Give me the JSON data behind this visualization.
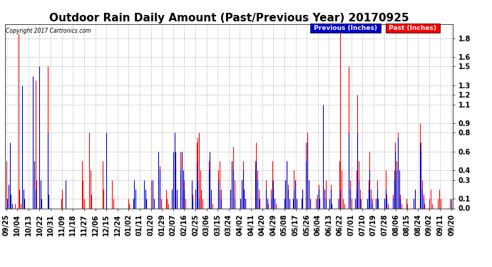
{
  "title": "Outdoor Rain Daily Amount (Past/Previous Year) 20170925",
  "copyright_text": "Copyright 2017 Cartronics.com",
  "legend_previous": "Previous (Inches)",
  "legend_past": "Past (Inches)",
  "yticks": [
    0.0,
    0.1,
    0.3,
    0.4,
    0.6,
    0.8,
    0.9,
    1.1,
    1.2,
    1.3,
    1.5,
    1.6,
    1.8
  ],
  "ylim": [
    0.0,
    1.95
  ],
  "x_labels": [
    "09/25",
    "10/04",
    "10/13",
    "10/22",
    "10/31",
    "11/09",
    "11/18",
    "11/27",
    "12/06",
    "12/15",
    "12/24",
    "01/02",
    "01/11",
    "01/20",
    "01/29",
    "02/07",
    "02/16",
    "02/25",
    "03/06",
    "03/15",
    "03/24",
    "04/02",
    "04/11",
    "04/20",
    "04/29",
    "05/08",
    "05/17",
    "05/26",
    "06/04",
    "06/13",
    "06/22",
    "07/01",
    "07/10",
    "07/19",
    "07/28",
    "08/06",
    "08/15",
    "08/24",
    "09/02",
    "09/11",
    "09/20"
  ],
  "background_color": "#ffffff",
  "grid_color": "#bbbbbb",
  "previous_color": "#0000cc",
  "past_color": "#ff0000",
  "dark_color": "#333333",
  "title_fontsize": 11,
  "axis_fontsize": 7,
  "n_points": 366,
  "seed": 42,
  "past_data": [
    0.5,
    0.1,
    0.0,
    0.0,
    0.0,
    0.0,
    0.0,
    0.05,
    0.0,
    0.0,
    1.85,
    0.2,
    0.05,
    0.0,
    0.0,
    0.0,
    0.0,
    0.0,
    0.0,
    0.0,
    0.0,
    0.0,
    0.0,
    0.0,
    1.35,
    0.3,
    0.0,
    0.0,
    0.0,
    0.0,
    0.0,
    0.0,
    0.0,
    0.0,
    1.5,
    0.05,
    0.0,
    0.0,
    0.0,
    0.0,
    0.0,
    0.0,
    0.0,
    0.0,
    0.0,
    0.1,
    0.2,
    0.0,
    0.0,
    0.0,
    0.0,
    0.0,
    0.0,
    0.0,
    0.0,
    0.0,
    0.0,
    0.0,
    0.0,
    0.0,
    0.0,
    0.0,
    0.5,
    0.3,
    0.1,
    0.0,
    0.0,
    0.0,
    0.8,
    0.4,
    0.15,
    0.0,
    0.0,
    0.0,
    0.0,
    0.0,
    0.0,
    0.0,
    0.0,
    0.5,
    0.2,
    0.0,
    0.0,
    0.0,
    0.0,
    0.0,
    0.0,
    0.3,
    0.1,
    0.0,
    0.0,
    0.0,
    0.0,
    0.0,
    0.0,
    0.0,
    0.0,
    0.0,
    0.0,
    0.0,
    0.1,
    0.05,
    0.0,
    0.0,
    0.0,
    0.0,
    0.0,
    0.0,
    0.0,
    0.0,
    0.0,
    0.0,
    0.0,
    0.0,
    0.0,
    0.0,
    0.0,
    0.0,
    0.0,
    0.3,
    0.15,
    0.0,
    0.0,
    0.0,
    0.0,
    0.3,
    0.45,
    0.1,
    0.0,
    0.0,
    0.0,
    0.2,
    0.1,
    0.05,
    0.0,
    0.0,
    0.2,
    0.4,
    0.6,
    0.3,
    0.1,
    0.0,
    0.0,
    0.6,
    0.55,
    0.2,
    0.3,
    0.1,
    0.0,
    0.0,
    0.0,
    0.0,
    0.25,
    0.15,
    0.0,
    0.0,
    0.7,
    0.75,
    0.8,
    0.4,
    0.2,
    0.1,
    0.0,
    0.0,
    0.0,
    0.0,
    0.5,
    0.4,
    0.1,
    0.05,
    0.0,
    0.0,
    0.0,
    0.0,
    0.4,
    0.5,
    0.2,
    0.0,
    0.0,
    0.0,
    0.0,
    0.0,
    0.0,
    0.0,
    0.2,
    0.5,
    0.65,
    0.3,
    0.0,
    0.0,
    0.0,
    0.0,
    0.1,
    0.3,
    0.5,
    0.2,
    0.1,
    0.0,
    0.0,
    0.0,
    0.0,
    0.0,
    0.0,
    0.0,
    0.5,
    0.7,
    0.4,
    0.2,
    0.1,
    0.0,
    0.0,
    0.0,
    0.0,
    0.3,
    0.1,
    0.05,
    0.0,
    0.2,
    0.5,
    0.3,
    0.1,
    0.05,
    0.0,
    0.0,
    0.0,
    0.0,
    0.0,
    0.0,
    0.1,
    0.3,
    0.5,
    0.25,
    0.0,
    0.0,
    0.0,
    0.1,
    0.4,
    0.3,
    0.1,
    0.0,
    0.0,
    0.0,
    0.1,
    0.2,
    0.0,
    0.0,
    0.7,
    0.8,
    0.3,
    0.1,
    0.0,
    0.0,
    0.0,
    0.0,
    0.1,
    0.15,
    0.25,
    0.1,
    0.0,
    0.0,
    0.0,
    0.2,
    0.3,
    0.0,
    0.0,
    0.1,
    0.25,
    0.05,
    0.0,
    0.0,
    0.0,
    0.0,
    0.1,
    0.5,
    1.88,
    0.4,
    0.1,
    0.05,
    0.0,
    0.0,
    0.0,
    1.5,
    0.3,
    0.1,
    0.0,
    0.0,
    0.1,
    0.4,
    1.2,
    0.5,
    0.2,
    0.1,
    0.0,
    0.0,
    0.0,
    0.0,
    0.1,
    0.3,
    0.6,
    0.2,
    0.1,
    0.0,
    0.0,
    0.1,
    0.3,
    0.1,
    0.0,
    0.0,
    0.0,
    0.0,
    0.1,
    0.4,
    0.15,
    0.05,
    0.0,
    0.0,
    0.0,
    0.15,
    0.4,
    0.7,
    0.5,
    0.8,
    0.4,
    0.15,
    0.05,
    0.0,
    0.0,
    0.0,
    0.1,
    0.05,
    0.0,
    0.0,
    0.0,
    0.0,
    0.1,
    0.2,
    0.0,
    0.0,
    0.0,
    0.9,
    0.7,
    0.3,
    0.15,
    0.05,
    0.0,
    0.0,
    0.0,
    0.1,
    0.2,
    0.05,
    0.0,
    0.0,
    0.0,
    0.0,
    0.1,
    0.2,
    0.1,
    0.0,
    0.0,
    0.0,
    0.0,
    0.0,
    0.0,
    0.0,
    0.1,
    0.05,
    0.0
  ],
  "prev_data": [
    0.0,
    0.1,
    0.25,
    0.7,
    0.15,
    0.05,
    0.0,
    0.0,
    0.0,
    0.0,
    0.0,
    0.0,
    0.0,
    1.3,
    0.2,
    0.1,
    0.0,
    0.0,
    0.0,
    0.0,
    0.0,
    0.0,
    1.4,
    0.5,
    0.2,
    0.0,
    0.0,
    1.5,
    0.3,
    0.1,
    0.0,
    0.0,
    0.0,
    0.0,
    0.8,
    0.15,
    0.0,
    0.0,
    0.0,
    0.0,
    0.0,
    0.0,
    0.0,
    0.0,
    0.0,
    0.0,
    0.0,
    0.0,
    0.0,
    0.3,
    0.0,
    0.0,
    0.0,
    0.0,
    0.0,
    0.0,
    0.0,
    0.0,
    0.0,
    0.0,
    0.0,
    0.0,
    0.0,
    0.0,
    0.0,
    0.0,
    0.0,
    0.0,
    0.0,
    0.0,
    0.0,
    0.0,
    0.0,
    0.0,
    0.0,
    0.0,
    0.0,
    0.0,
    0.0,
    0.0,
    0.0,
    0.0,
    0.8,
    0.0,
    0.0,
    0.0,
    0.0,
    0.0,
    0.0,
    0.0,
    0.0,
    0.0,
    0.0,
    0.0,
    0.0,
    0.0,
    0.0,
    0.0,
    0.0,
    0.0,
    0.0,
    0.0,
    0.0,
    0.0,
    0.1,
    0.3,
    0.2,
    0.0,
    0.0,
    0.0,
    0.0,
    0.0,
    0.0,
    0.3,
    0.2,
    0.1,
    0.0,
    0.0,
    0.0,
    0.0,
    0.3,
    0.1,
    0.0,
    0.0,
    0.0,
    0.6,
    0.4,
    0.0,
    0.0,
    0.0,
    0.0,
    0.0,
    0.0,
    0.0,
    0.0,
    0.0,
    0.2,
    0.6,
    0.8,
    0.6,
    0.2,
    0.0,
    0.0,
    0.4,
    0.6,
    0.4,
    0.2,
    0.0,
    0.0,
    0.0,
    0.0,
    0.0,
    0.3,
    0.1,
    0.0,
    0.2,
    0.5,
    0.3,
    0.1,
    0.0,
    0.0,
    0.0,
    0.0,
    0.0,
    0.0,
    0.0,
    0.4,
    0.6,
    0.2,
    0.0,
    0.0,
    0.0,
    0.0,
    0.0,
    0.3,
    0.2,
    0.1,
    0.0,
    0.0,
    0.0,
    0.0,
    0.0,
    0.0,
    0.0,
    0.2,
    0.5,
    0.4,
    0.1,
    0.0,
    0.0,
    0.0,
    0.0,
    0.1,
    0.3,
    0.4,
    0.2,
    0.1,
    0.0,
    0.0,
    0.0,
    0.0,
    0.0,
    0.0,
    0.0,
    0.4,
    0.5,
    0.3,
    0.1,
    0.0,
    0.0,
    0.0,
    0.0,
    0.0,
    0.2,
    0.1,
    0.0,
    0.0,
    0.1,
    0.3,
    0.2,
    0.1,
    0.0,
    0.0,
    0.0,
    0.0,
    0.0,
    0.0,
    0.0,
    0.1,
    0.3,
    0.5,
    0.2,
    0.1,
    0.0,
    0.0,
    0.1,
    0.2,
    0.3,
    0.1,
    0.0,
    0.0,
    0.0,
    0.1,
    0.2,
    0.0,
    0.0,
    0.5,
    0.7,
    0.3,
    0.1,
    0.0,
    0.0,
    0.0,
    0.0,
    0.0,
    0.1,
    0.2,
    0.1,
    0.0,
    0.0,
    1.1,
    0.2,
    0.1,
    0.0,
    0.0,
    0.1,
    0.2,
    0.05,
    0.0,
    0.0,
    0.0,
    0.0,
    0.0,
    0.1,
    0.2,
    0.0,
    0.0,
    0.0,
    0.0,
    0.0,
    0.0,
    0.8,
    0.2,
    0.0,
    0.0,
    0.0,
    0.1,
    0.2,
    0.8,
    0.3,
    0.1,
    0.0,
    0.0,
    0.0,
    0.0,
    0.0,
    0.1,
    0.2,
    0.4,
    0.1,
    0.05,
    0.0,
    0.0,
    0.1,
    0.2,
    0.1,
    0.0,
    0.0,
    0.0,
    0.0,
    0.1,
    0.2,
    0.1,
    0.0,
    0.0,
    0.0,
    0.0,
    0.1,
    0.3,
    0.6,
    0.4,
    0.75,
    0.4,
    0.1,
    0.0,
    0.0,
    0.0,
    0.0,
    0.0,
    0.0,
    0.0,
    0.0,
    0.0,
    0.0,
    0.1,
    0.2,
    0.0,
    0.0,
    0.0,
    0.7,
    0.6,
    0.2,
    0.1,
    0.0,
    0.0,
    0.0,
    0.0,
    0.0,
    0.0,
    0.0,
    0.0,
    0.0,
    0.0,
    0.0,
    0.0,
    0.0,
    0.0,
    0.0,
    0.0,
    0.0,
    0.0,
    0.0,
    0.0,
    0.0,
    0.0,
    0.1,
    0.8
  ]
}
